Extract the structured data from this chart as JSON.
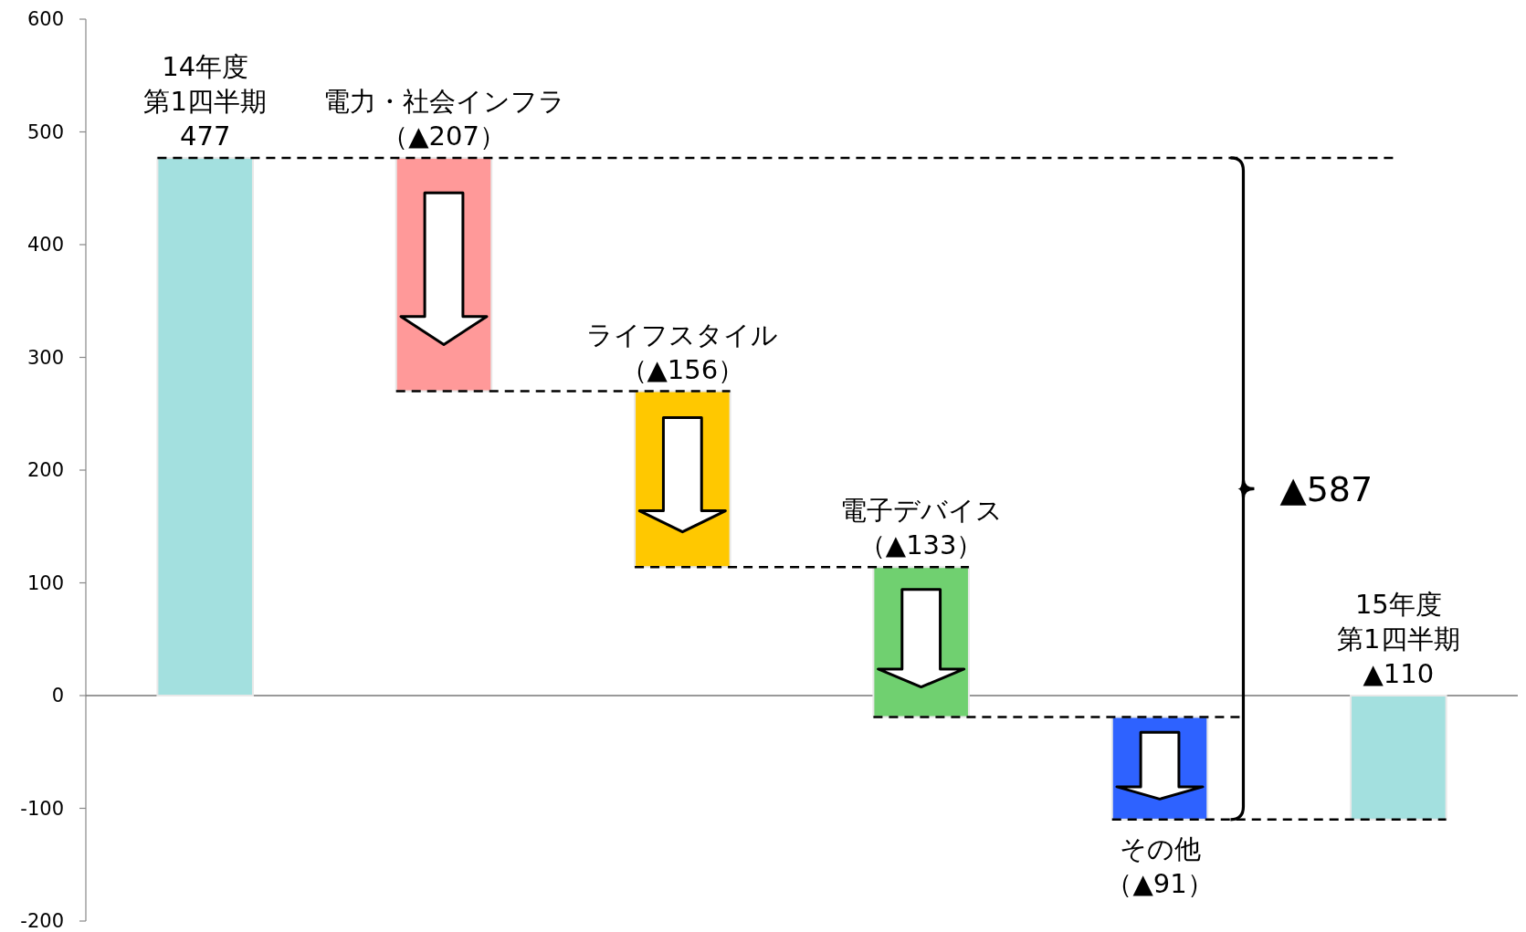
{
  "chart_data": {
    "type": "bar",
    "categories": [
      "14年度第1四半期",
      "電力・社会インフラ",
      "ライフスタイル",
      "電子デバイス",
      "その他",
      "15年度第1四半期"
    ],
    "values": [
      477,
      -207,
      -156,
      -133,
      -91,
      -110
    ],
    "base": [
      0,
      477,
      270,
      114,
      -19,
      0
    ],
    "colors": [
      "#a3e0df",
      "#ff9999",
      "#ffc800",
      "#70d070",
      "#2e62ff",
      "#a3e0df"
    ],
    "value_labels": [
      "477",
      "（▲207）",
      "（▲156）",
      "（▲133）",
      "（▲91）",
      "▲110"
    ],
    "annotations": [
      "▲587"
    ],
    "ylim": [
      -200,
      600
    ],
    "yticks": [
      -200,
      -100,
      0,
      100,
      200,
      300,
      400,
      500,
      600
    ],
    "ref_lines": [
      {
        "axis": "y",
        "value": 477,
        "color": "#000000",
        "line_style": "dashed"
      },
      {
        "axis": "y",
        "value": 270,
        "color": "#000000",
        "line_style": "dashed"
      },
      {
        "axis": "y",
        "value": 114,
        "color": "#000000",
        "line_style": "dashed"
      },
      {
        "axis": "y",
        "value": -19,
        "color": "#000000",
        "line_style": "dashed"
      },
      {
        "axis": "y",
        "value": -110,
        "color": "#000000",
        "line_style": "dashed"
      }
    ],
    "tick_labels": "y"
  }
}
